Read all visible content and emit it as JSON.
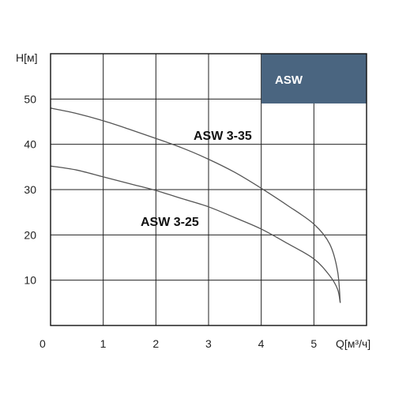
{
  "chart_data": {
    "type": "line",
    "xlabel": "Q[м³/ч]",
    "ylabel": "H[м]",
    "xlim": [
      0,
      6
    ],
    "ylim": [
      0,
      60
    ],
    "x_ticks": [
      "0",
      "1",
      "2",
      "3",
      "4",
      "5"
    ],
    "y_ticks": [
      "10",
      "20",
      "30",
      "40",
      "50"
    ],
    "grid": true,
    "badge": {
      "text": "ASW",
      "color": "#4a6580"
    },
    "series": [
      {
        "name": "ASW 3-35",
        "color": "#555555",
        "x": [
          0,
          0.5,
          1,
          1.5,
          2,
          2.5,
          3,
          3.5,
          4,
          4.5,
          5,
          5.3,
          5.45,
          5.5
        ],
        "y": [
          48,
          46.8,
          45.2,
          43.3,
          41.3,
          39.2,
          36.7,
          33.8,
          30.3,
          26.5,
          22.4,
          18,
          12,
          5
        ]
      },
      {
        "name": "ASW 3-25",
        "color": "#555555",
        "x": [
          0,
          0.5,
          1,
          1.5,
          2,
          2.5,
          3,
          3.5,
          4,
          4.5,
          5,
          5.3,
          5.45,
          5.5
        ],
        "y": [
          35.2,
          34.3,
          32.8,
          31.3,
          29.8,
          28,
          26.2,
          23.8,
          21.3,
          18.1,
          14.7,
          11,
          8,
          5
        ]
      }
    ]
  }
}
